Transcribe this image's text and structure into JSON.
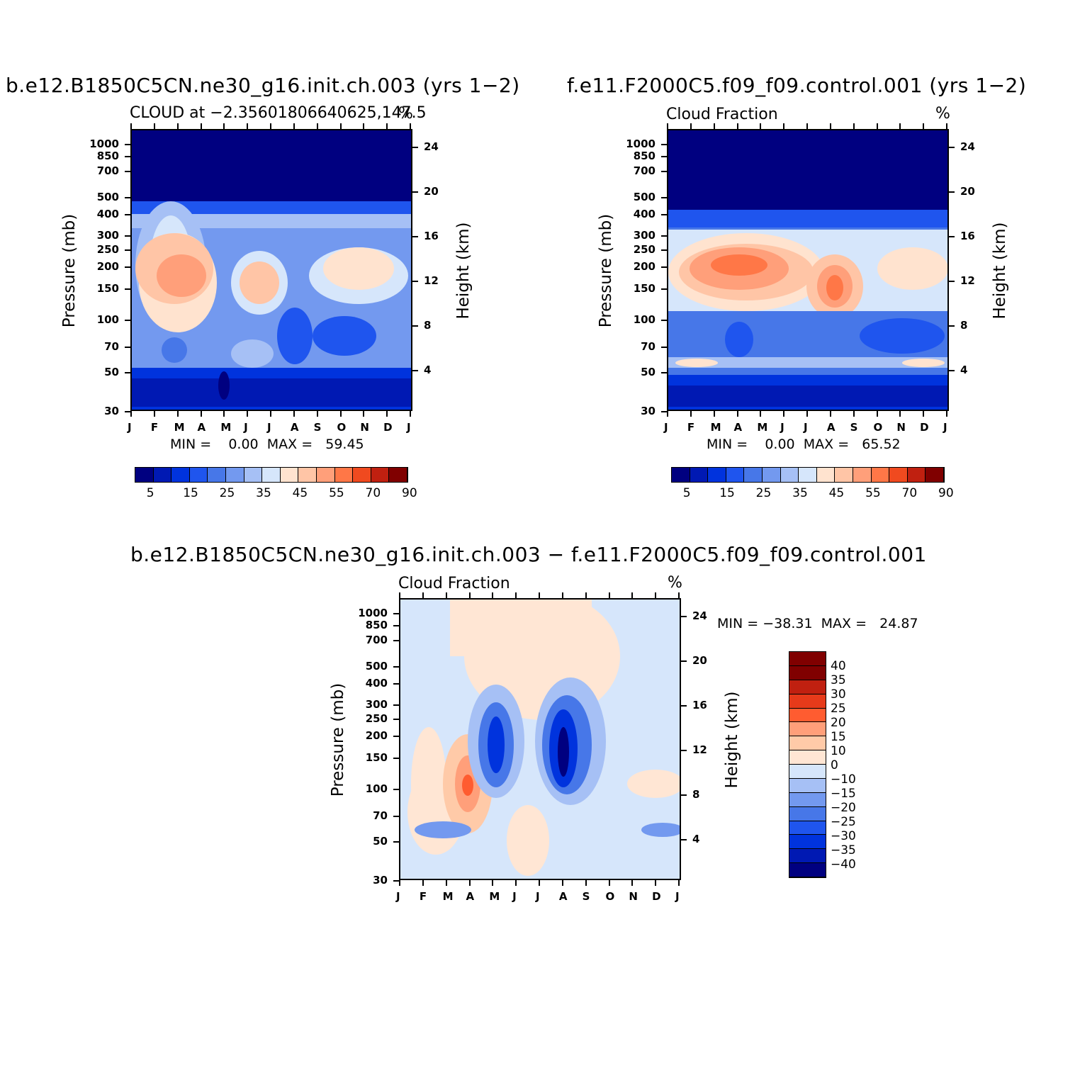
{
  "chart_data": [
    {
      "type": "heatmap",
      "title": "b.e12.B1850C5CN.ne30_g16.init.ch.003 (yrs 1−2)",
      "subtitle": "CLOUD at −2.35601806640625,147.5",
      "units": "%",
      "x_ticks": [
        "J",
        "F",
        "M",
        "A",
        "M",
        "J",
        "J",
        "A",
        "S",
        "O",
        "N",
        "D",
        "J"
      ],
      "y_ticks": [
        "30",
        "50",
        "70",
        "100",
        "150",
        "200",
        "250",
        "300",
        "400",
        "500",
        "700",
        "850",
        "1000"
      ],
      "y_label": "Pressure (mb)",
      "y2_ticks": [
        "24",
        "20",
        "16",
        "12",
        "8",
        "4"
      ],
      "y2_label": "Height (km)",
      "min_text": "MIN =",
      "min_value": "0.00",
      "max_text": "MAX =",
      "max_value": "59.45",
      "colorbar_labels": [
        "5",
        "15",
        "25",
        "35",
        "45",
        "55",
        "70",
        "90"
      ]
    },
    {
      "type": "heatmap",
      "title": "f.e11.F2000C5.f09_f09.control.001 (yrs 1−2)",
      "subtitle": "Cloud Fraction",
      "units": "%",
      "x_ticks": [
        "J",
        "F",
        "M",
        "A",
        "M",
        "J",
        "J",
        "A",
        "S",
        "O",
        "N",
        "D",
        "J"
      ],
      "y_ticks": [
        "30",
        "50",
        "70",
        "100",
        "150",
        "200",
        "250",
        "300",
        "400",
        "500",
        "700",
        "850",
        "1000"
      ],
      "y_label": "Pressure (mb)",
      "y2_ticks": [
        "24",
        "20",
        "16",
        "12",
        "8",
        "4"
      ],
      "y2_label": "Height (km)",
      "min_text": "MIN =",
      "min_value": "0.00",
      "max_text": "MAX =",
      "max_value": "65.52",
      "colorbar_labels": [
        "5",
        "15",
        "25",
        "35",
        "45",
        "55",
        "70",
        "90"
      ]
    },
    {
      "type": "heatmap",
      "title": "b.e12.B1850C5CN.ne30_g16.init.ch.003 − f.e11.F2000C5.f09_f09.control.001",
      "subtitle": "Cloud Fraction",
      "units": "%",
      "x_ticks": [
        "J",
        "F",
        "M",
        "A",
        "M",
        "J",
        "J",
        "A",
        "S",
        "O",
        "N",
        "D",
        "J"
      ],
      "y_ticks": [
        "30",
        "50",
        "70",
        "100",
        "150",
        "200",
        "250",
        "300",
        "400",
        "500",
        "700",
        "850",
        "1000"
      ],
      "y_label": "Pressure (mb)",
      "y2_ticks": [
        "24",
        "20",
        "16",
        "12",
        "8",
        "4"
      ],
      "y2_label": "Height (km)",
      "min_text": "MIN =",
      "min_value": "−38.31",
      "max_text": "MAX =",
      "max_value": "24.87",
      "colorbar_labels": [
        "40",
        "35",
        "30",
        "25",
        "20",
        "15",
        "10",
        "0",
        "−10",
        "−15",
        "−20",
        "−25",
        "−30",
        "−35",
        "−40"
      ]
    }
  ],
  "colors": {
    "seq": [
      "#000080",
      "#0019b3",
      "#0033dd",
      "#1f55ee",
      "#4777e8",
      "#7399ef",
      "#a6c0f5",
      "#d6e6fb",
      "#ffe3cf",
      "#ffc5a6",
      "#ff9f7a",
      "#ff7747",
      "#f04a1f",
      "#c02010",
      "#800000"
    ],
    "div": [
      "#800000",
      "#c02010",
      "#e63a1a",
      "#ff5c30",
      "#ff9f7a",
      "#ffcaa8",
      "#ffe6d4",
      "#d6e6fb",
      "#a6c0f5",
      "#7399ef",
      "#4777e8",
      "#1f55ee",
      "#0033dd",
      "#0019b3",
      "#000080"
    ]
  }
}
